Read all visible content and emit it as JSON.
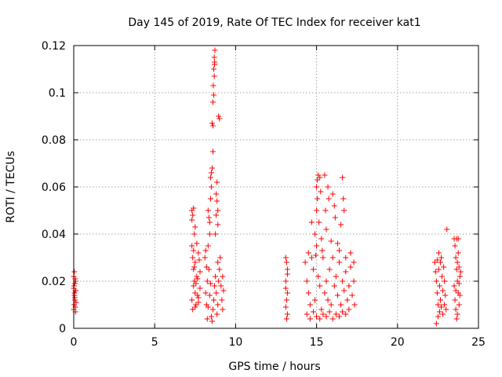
{
  "chart_data": {
    "type": "scatter",
    "title": "Day 145 of 2019, Rate Of TEC Index for receiver kat1",
    "xlabel": "GPS time / hours",
    "ylabel": "ROTI / TECUs",
    "xlim": [
      0,
      25
    ],
    "ylim": [
      0,
      0.12
    ],
    "xticks": [
      0,
      5,
      10,
      15,
      20,
      25
    ],
    "xtick_labels": [
      "0",
      "5",
      "10",
      "15",
      "20",
      "25"
    ],
    "yticks": [
      0,
      0.02,
      0.04,
      0.06,
      0.08,
      0.1,
      0.12
    ],
    "ytick_labels": [
      "0",
      "0.02",
      "0.04",
      "0.06",
      "0.08",
      "0.1",
      "0.12"
    ],
    "grid": true,
    "marker": "+",
    "color": "#ff0000",
    "series": [
      {
        "name": "ROTI",
        "points": [
          [
            0.0,
            0.022
          ],
          [
            0.02,
            0.018
          ],
          [
            0.05,
            0.015
          ],
          [
            0.08,
            0.012
          ],
          [
            0.1,
            0.009
          ],
          [
            0.12,
            0.02
          ],
          [
            0.0,
            0.008
          ],
          [
            0.04,
            0.024
          ],
          [
            0.06,
            0.013
          ],
          [
            0.1,
            0.016
          ],
          [
            0.14,
            0.011
          ],
          [
            0.0,
            0.017
          ],
          [
            0.03,
            0.01
          ],
          [
            0.07,
            0.019
          ],
          [
            0.11,
            0.007
          ],
          [
            0.09,
            0.021
          ],
          [
            0.05,
            0.014
          ],
          [
            0.13,
            0.016
          ],
          [
            7.3,
            0.05
          ],
          [
            7.35,
            0.048
          ],
          [
            7.4,
            0.051
          ],
          [
            7.3,
            0.046
          ],
          [
            7.45,
            0.04
          ],
          [
            7.5,
            0.043
          ],
          [
            7.3,
            0.035
          ],
          [
            7.35,
            0.03
          ],
          [
            7.4,
            0.025
          ],
          [
            7.45,
            0.02
          ],
          [
            7.5,
            0.015
          ],
          [
            7.55,
            0.01
          ],
          [
            7.3,
            0.012
          ],
          [
            7.4,
            0.018
          ],
          [
            7.5,
            0.028
          ],
          [
            7.6,
            0.022
          ],
          [
            7.65,
            0.014
          ],
          [
            7.7,
            0.032
          ],
          [
            7.35,
            0.008
          ],
          [
            7.45,
            0.026
          ],
          [
            7.55,
            0.019
          ],
          [
            7.6,
            0.036
          ],
          [
            7.7,
            0.011
          ],
          [
            7.8,
            0.024
          ],
          [
            7.8,
            0.017
          ],
          [
            7.75,
            0.029
          ],
          [
            7.4,
            0.033
          ],
          [
            7.5,
            0.009
          ],
          [
            7.65,
            0.021
          ],
          [
            7.7,
            0.013
          ],
          [
            8.1,
            0.03
          ],
          [
            8.15,
            0.015
          ],
          [
            8.2,
            0.01
          ],
          [
            8.25,
            0.02
          ],
          [
            8.3,
            0.035
          ],
          [
            8.35,
            0.025
          ],
          [
            8.4,
            0.04
          ],
          [
            8.3,
            0.05
          ],
          [
            8.35,
            0.047
          ],
          [
            8.4,
            0.045
          ],
          [
            8.45,
            0.055
          ],
          [
            8.5,
            0.06
          ],
          [
            8.45,
            0.064
          ],
          [
            8.5,
            0.066
          ],
          [
            8.55,
            0.068
          ],
          [
            8.6,
            0.075
          ],
          [
            8.55,
            0.087
          ],
          [
            8.6,
            0.086
          ],
          [
            8.6,
            0.096
          ],
          [
            8.65,
            0.099
          ],
          [
            8.62,
            0.103
          ],
          [
            8.68,
            0.107
          ],
          [
            8.65,
            0.11
          ],
          [
            8.7,
            0.112
          ],
          [
            8.68,
            0.115
          ],
          [
            8.72,
            0.118
          ],
          [
            8.7,
            0.113
          ],
          [
            8.95,
            0.09
          ],
          [
            9.0,
            0.089
          ],
          [
            8.85,
            0.062
          ],
          [
            8.8,
            0.057
          ],
          [
            8.85,
            0.054
          ],
          [
            8.9,
            0.05
          ],
          [
            8.8,
            0.048
          ],
          [
            8.9,
            0.044
          ],
          [
            8.75,
            0.04
          ],
          [
            8.6,
            0.008
          ],
          [
            8.65,
            0.012
          ],
          [
            8.7,
            0.018
          ],
          [
            8.75,
            0.022
          ],
          [
            8.8,
            0.015
          ],
          [
            8.85,
            0.006
          ],
          [
            8.9,
            0.01
          ],
          [
            8.95,
            0.02
          ],
          [
            9.0,
            0.025
          ],
          [
            9.05,
            0.03
          ],
          [
            9.1,
            0.018
          ],
          [
            9.15,
            0.012
          ],
          [
            9.2,
            0.022
          ],
          [
            9.25,
            0.016
          ],
          [
            9.2,
            0.008
          ],
          [
            8.5,
            0.005
          ],
          [
            8.55,
            0.003
          ],
          [
            8.4,
            0.014
          ],
          [
            8.3,
            0.009
          ],
          [
            8.2,
            0.026
          ],
          [
            8.15,
            0.033
          ],
          [
            8.25,
            0.004
          ],
          [
            8.45,
            0.019
          ],
          [
            8.9,
            0.028
          ],
          [
            13.1,
            0.03
          ],
          [
            13.15,
            0.028
          ],
          [
            13.2,
            0.025
          ],
          [
            13.1,
            0.02
          ],
          [
            13.2,
            0.015
          ],
          [
            13.15,
            0.012
          ],
          [
            13.1,
            0.009
          ],
          [
            13.2,
            0.006
          ],
          [
            13.15,
            0.004
          ],
          [
            13.1,
            0.017
          ],
          [
            13.2,
            0.023
          ],
          [
            14.3,
            0.028
          ],
          [
            14.4,
            0.02
          ],
          [
            14.5,
            0.015
          ],
          [
            14.6,
            0.01
          ],
          [
            14.7,
            0.03
          ],
          [
            14.8,
            0.025
          ],
          [
            14.9,
            0.012
          ],
          [
            15.0,
            0.035
          ],
          [
            15.1,
            0.022
          ],
          [
            15.2,
            0.018
          ],
          [
            15.3,
            0.008
          ],
          [
            15.4,
            0.03
          ],
          [
            15.5,
            0.015
          ],
          [
            15.6,
            0.02
          ],
          [
            15.7,
            0.012
          ],
          [
            15.8,
            0.025
          ],
          [
            15.9,
            0.01
          ],
          [
            16.0,
            0.03
          ],
          [
            16.1,
            0.018
          ],
          [
            16.2,
            0.022
          ],
          [
            16.3,
            0.014
          ],
          [
            16.4,
            0.028
          ],
          [
            16.5,
            0.01
          ],
          [
            16.6,
            0.02
          ],
          [
            16.7,
            0.016
          ],
          [
            16.8,
            0.024
          ],
          [
            16.9,
            0.012
          ],
          [
            17.0,
            0.018
          ],
          [
            17.1,
            0.026
          ],
          [
            17.2,
            0.014
          ],
          [
            17.3,
            0.02
          ],
          [
            17.35,
            0.01
          ],
          [
            14.4,
            0.006
          ],
          [
            14.6,
            0.004
          ],
          [
            14.8,
            0.007
          ],
          [
            15.0,
            0.005
          ],
          [
            15.2,
            0.004
          ],
          [
            15.4,
            0.006
          ],
          [
            15.6,
            0.005
          ],
          [
            15.8,
            0.007
          ],
          [
            16.0,
            0.004
          ],
          [
            16.2,
            0.006
          ],
          [
            16.4,
            0.005
          ],
          [
            16.6,
            0.007
          ],
          [
            16.8,
            0.006
          ],
          [
            17.0,
            0.008
          ],
          [
            14.5,
            0.032
          ],
          [
            14.9,
            0.04
          ],
          [
            15.0,
            0.05
          ],
          [
            15.05,
            0.055
          ],
          [
            15.0,
            0.06
          ],
          [
            15.05,
            0.063
          ],
          [
            15.1,
            0.065
          ],
          [
            15.2,
            0.064
          ],
          [
            15.25,
            0.058
          ],
          [
            15.15,
            0.045
          ],
          [
            15.3,
            0.038
          ],
          [
            15.5,
            0.065
          ],
          [
            15.55,
            0.05
          ],
          [
            15.6,
            0.042
          ],
          [
            15.7,
            0.06
          ],
          [
            15.75,
            0.055
          ],
          [
            16.0,
            0.057
          ],
          [
            16.1,
            0.052
          ],
          [
            16.15,
            0.047
          ],
          [
            16.6,
            0.064
          ],
          [
            16.65,
            0.055
          ],
          [
            16.7,
            0.05
          ],
          [
            16.5,
            0.044
          ],
          [
            16.3,
            0.036
          ],
          [
            16.4,
            0.033
          ],
          [
            15.9,
            0.037
          ],
          [
            14.7,
            0.045
          ],
          [
            14.95,
            0.031
          ],
          [
            15.35,
            0.033
          ],
          [
            16.8,
            0.03
          ],
          [
            17.1,
            0.032
          ],
          [
            17.3,
            0.028
          ],
          [
            22.3,
            0.028
          ],
          [
            22.35,
            0.024
          ],
          [
            22.4,
            0.02
          ],
          [
            22.45,
            0.015
          ],
          [
            22.5,
            0.01
          ],
          [
            22.55,
            0.025
          ],
          [
            22.6,
            0.018
          ],
          [
            22.65,
            0.012
          ],
          [
            22.7,
            0.03
          ],
          [
            22.75,
            0.022
          ],
          [
            22.8,
            0.016
          ],
          [
            22.85,
            0.026
          ],
          [
            22.9,
            0.02
          ],
          [
            22.95,
            0.014
          ],
          [
            23.0,
            0.008
          ],
          [
            22.4,
            0.002
          ],
          [
            22.5,
            0.005
          ],
          [
            22.6,
            0.007
          ],
          [
            22.7,
            0.009
          ],
          [
            22.8,
            0.006
          ],
          [
            22.9,
            0.01
          ],
          [
            22.45,
            0.029
          ],
          [
            22.55,
            0.032
          ],
          [
            22.65,
            0.028
          ],
          [
            23.05,
            0.042
          ],
          [
            23.5,
            0.038
          ],
          [
            23.55,
            0.035
          ],
          [
            23.6,
            0.03
          ],
          [
            23.65,
            0.025
          ],
          [
            23.7,
            0.02
          ],
          [
            23.75,
            0.015
          ],
          [
            23.8,
            0.01
          ],
          [
            23.85,
            0.022
          ],
          [
            23.5,
            0.018
          ],
          [
            23.55,
            0.012
          ],
          [
            23.6,
            0.008
          ],
          [
            23.65,
            0.004
          ],
          [
            23.7,
            0.028
          ],
          [
            23.75,
            0.032
          ],
          [
            23.8,
            0.019
          ],
          [
            23.85,
            0.014
          ],
          [
            23.9,
            0.024
          ],
          [
            23.6,
            0.016
          ],
          [
            23.7,
            0.006
          ],
          [
            23.8,
            0.026
          ],
          [
            23.65,
            0.038
          ],
          [
            23.75,
            0.038
          ]
        ]
      }
    ]
  }
}
